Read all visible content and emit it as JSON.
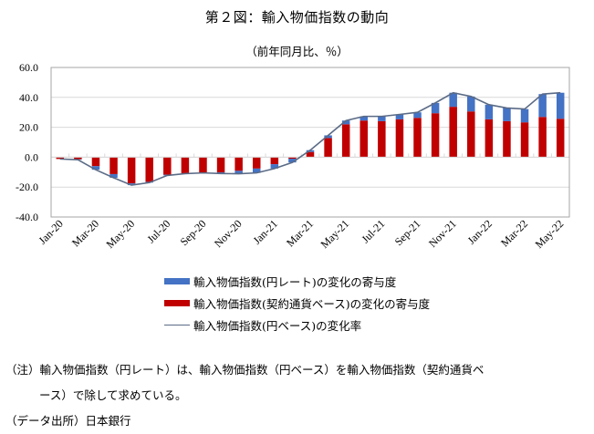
{
  "chart_data": {
    "type": "bar",
    "stacked": true,
    "title": "第２図：輸入物価指数の動向",
    "subtitle": "（前年同月比、％）",
    "xlabel": "",
    "ylabel": "",
    "ylim": [
      -40,
      60
    ],
    "yticks": [
      "60.0",
      "40.0",
      "20.0",
      "0.0",
      "-20.0",
      "-40.0"
    ],
    "ytick_values": [
      60,
      40,
      20,
      0,
      -20,
      -40
    ],
    "grid": true,
    "categories": [
      "Jan-20",
      "Feb-20",
      "Mar-20",
      "Apr-20",
      "May-20",
      "Jun-20",
      "Jul-20",
      "Aug-20",
      "Sep-20",
      "Oct-20",
      "Nov-20",
      "Dec-20",
      "Jan-21",
      "Feb-21",
      "Mar-21",
      "Apr-21",
      "May-21",
      "Jun-21",
      "Jul-21",
      "Aug-21",
      "Sep-21",
      "Oct-21",
      "Nov-21",
      "Dec-21",
      "Jan-22",
      "Feb-22",
      "Mar-22",
      "Apr-22",
      "May-22"
    ],
    "xtick_labels": [
      "Jan-20",
      "Mar-20",
      "May-20",
      "Jul-20",
      "Sep-20",
      "Nov-20",
      "Jan-21",
      "Mar-21",
      "May-21",
      "Jul-21",
      "Sep-21",
      "Nov-21",
      "Jan-22",
      "Mar-22",
      "May-22"
    ],
    "series": [
      {
        "name": "輸入物価指数(契約通貨ベース)の変化の寄与度",
        "type": "bar",
        "color": "#C00000",
        "values": [
          -1.2,
          -1.4,
          -6.0,
          -11.3,
          -17.5,
          -16.5,
          -11.7,
          -10.7,
          -10.3,
          -10.1,
          -9.1,
          -7.6,
          -4.7,
          -1.0,
          3.5,
          12.8,
          22.0,
          24.5,
          24.1,
          25.3,
          26.3,
          29.4,
          33.7,
          30.6,
          25.3,
          24.1,
          23.3,
          26.9,
          25.7
        ]
      },
      {
        "name": "輸入物価指数(円レート)の変化の寄与度",
        "type": "bar",
        "color": "#4472C4",
        "values": [
          0.0,
          -0.3,
          -2.4,
          -2.5,
          -1.2,
          -0.5,
          -0.5,
          -0.3,
          -0.2,
          -0.8,
          -2.0,
          -2.9,
          -2.9,
          -2.5,
          1.2,
          1.8,
          2.5,
          2.8,
          3.2,
          3.3,
          3.7,
          6.9,
          9.4,
          10.0,
          9.8,
          8.8,
          8.9,
          15.3,
          17.4
        ]
      },
      {
        "name": "輸入物価指数(円ベース)の変化率",
        "type": "line",
        "color": "#5B6B86",
        "values": [
          -1.2,
          -1.7,
          -8.4,
          -13.8,
          -18.7,
          -17.0,
          -12.2,
          -11.0,
          -10.5,
          -10.9,
          -11.1,
          -10.5,
          -7.6,
          -3.5,
          4.7,
          14.6,
          24.5,
          27.3,
          27.3,
          28.6,
          30.0,
          36.3,
          43.1,
          40.6,
          35.1,
          32.9,
          32.2,
          42.2,
          43.1
        ]
      }
    ],
    "legend_position": "bottom",
    "legend_order": [
      1,
      0,
      2
    ]
  },
  "notes": {
    "line1": "（注）輸入物価指数（円レート）は、輸入物価指数（円ベース）を輸入物価指数（契約通貨ベ",
    "line2": "ース）で除して求めている。",
    "source": "（データ出所）日本銀行"
  }
}
